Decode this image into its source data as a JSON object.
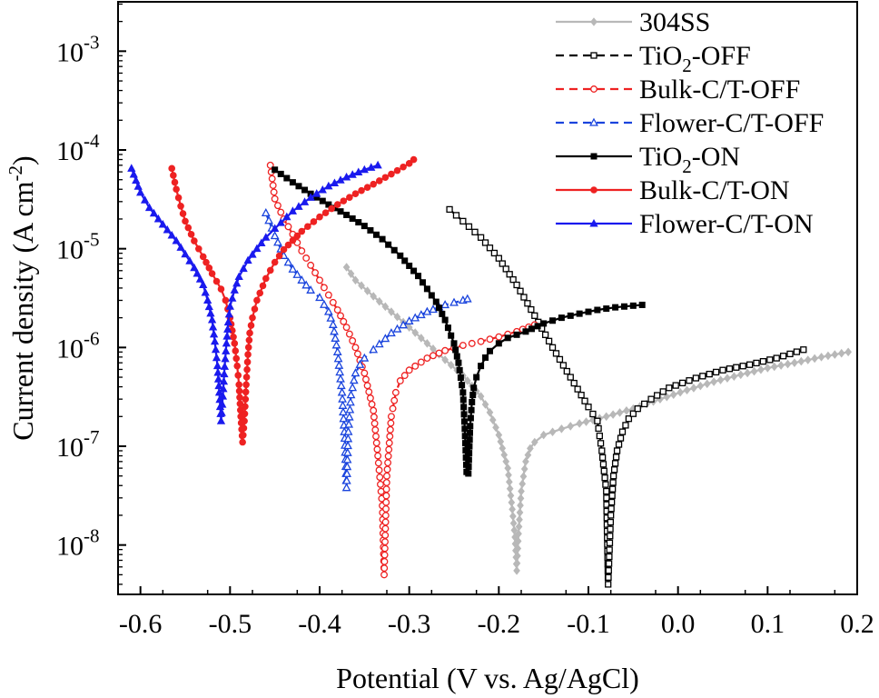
{
  "chart_data": {
    "type": "line",
    "title": "",
    "xlabel": "Potential (V vs. Ag/AgCl)",
    "ylabel": {
      "pre": "Current density (A cm",
      "sup": "-2",
      "post": ")"
    },
    "xlim": [
      -0.625,
      0.2
    ],
    "ylim_log10": [
      -8.5,
      -2.5
    ],
    "y_scale": "log",
    "x_ticks": [
      {
        "value": -0.6,
        "label": "-0.6"
      },
      {
        "value": -0.5,
        "label": "-0.5"
      },
      {
        "value": -0.4,
        "label": "-0.4"
      },
      {
        "value": -0.3,
        "label": "-0.3"
      },
      {
        "value": -0.2,
        "label": "-0.2"
      },
      {
        "value": -0.1,
        "label": "-0.1"
      },
      {
        "value": 0.0,
        "label": "0.0"
      },
      {
        "value": 0.1,
        "label": "0.1"
      },
      {
        "value": 0.2,
        "label": "0.2"
      }
    ],
    "y_ticks": [
      {
        "exp": -8,
        "base": "10",
        "sup": "-8"
      },
      {
        "exp": -7,
        "base": "10",
        "sup": "-7"
      },
      {
        "exp": -6,
        "base": "10",
        "sup": "-6"
      },
      {
        "exp": -5,
        "base": "10",
        "sup": "-5"
      },
      {
        "exp": -4,
        "base": "10",
        "sup": "-4"
      },
      {
        "exp": -3,
        "base": "10",
        "sup": "-3"
      }
    ],
    "legend_position": "top-right",
    "series": [
      {
        "name": "304SS",
        "legend": {
          "text": "304SS"
        },
        "color": "#b8b8b8",
        "dash": "solid",
        "marker": "diamond-filled",
        "x": [
          -0.37,
          -0.36,
          -0.34,
          -0.32,
          -0.3,
          -0.28,
          -0.26,
          -0.24,
          -0.22,
          -0.21,
          -0.2,
          -0.19,
          -0.185,
          -0.182,
          -0.18,
          -0.178,
          -0.175,
          -0.17,
          -0.165,
          -0.16,
          -0.15,
          -0.13,
          -0.11,
          -0.08,
          -0.05,
          -0.02,
          0.01,
          0.04,
          0.07,
          0.1,
          0.13,
          0.16,
          0.19
        ],
        "y": [
          6.5e-06,
          4.8e-06,
          3.3e-06,
          2.3e-06,
          1.6e-06,
          1.1e-06,
          7.5e-07,
          5.2e-07,
          3.2e-07,
          2.2e-07,
          1.3e-07,
          6e-08,
          2.3e-08,
          1.2e-08,
          5.5e-09,
          1.3e-08,
          3.5e-08,
          7e-08,
          9.5e-08,
          1.1e-07,
          1.3e-07,
          1.5e-07,
          1.7e-07,
          2e-07,
          2.4e-07,
          3e-07,
          3.7e-07,
          4.5e-07,
          5.3e-07,
          6.2e-07,
          7e-07,
          8e-07,
          9e-07
        ]
      },
      {
        "name": "TiO2-OFF",
        "legend": {
          "pre": "TiO",
          "sub": "2",
          "post": "-OFF"
        },
        "color": "#000000",
        "dash": "dashed",
        "marker": "square-open",
        "x": [
          -0.255,
          -0.24,
          -0.22,
          -0.2,
          -0.18,
          -0.16,
          -0.14,
          -0.12,
          -0.1,
          -0.09,
          -0.085,
          -0.08,
          -0.078,
          -0.075,
          -0.072,
          -0.068,
          -0.062,
          -0.055,
          -0.045,
          -0.03,
          -0.01,
          0.02,
          0.05,
          0.08,
          0.11,
          0.14
        ],
        "y": [
          2.5e-05,
          1.9e-05,
          1.3e-05,
          8e-06,
          4.3e-06,
          2.1e-06,
          1e-06,
          5e-07,
          2.5e-07,
          1.8e-07,
          9e-08,
          3.5e-08,
          4e-09,
          2e-08,
          5e-08,
          9e-08,
          1.4e-07,
          1.9e-07,
          2.4e-07,
          3e-07,
          3.9e-07,
          4.9e-07,
          5.9e-07,
          6.7e-07,
          7.8e-07,
          9.5e-07
        ]
      },
      {
        "name": "Bulk-C/T-OFF",
        "legend": {
          "text": "Bulk-C/T-OFF"
        },
        "color": "#ee2222",
        "dash": "dashed",
        "marker": "circle-open",
        "x": [
          -0.455,
          -0.45,
          -0.44,
          -0.43,
          -0.42,
          -0.41,
          -0.4,
          -0.39,
          -0.38,
          -0.37,
          -0.36,
          -0.35,
          -0.34,
          -0.335,
          -0.33,
          -0.328,
          -0.325,
          -0.32,
          -0.315,
          -0.31,
          -0.3,
          -0.28,
          -0.26,
          -0.24,
          -0.22,
          -0.2,
          -0.18,
          -0.16
        ],
        "y": [
          7e-05,
          3.2e-05,
          2e-05,
          1.4e-05,
          9.5e-06,
          6.8e-06,
          4.8e-06,
          3.4e-06,
          2.4e-06,
          1.6e-06,
          1e-06,
          5.5e-07,
          2.3e-07,
          8e-08,
          2.5e-08,
          5e-09,
          5e-08,
          2e-07,
          3.5e-07,
          4.6e-07,
          5.9e-07,
          7.8e-07,
          9.3e-07,
          1.05e-06,
          1.15e-06,
          1.28e-06,
          1.45e-06,
          1.7e-06
        ]
      },
      {
        "name": "Flower-C/T-OFF",
        "legend": {
          "text": "Flower-C/T-OFF"
        },
        "color": "#1a44dd",
        "dash": "dashed",
        "marker": "triangle-open",
        "x": [
          -0.46,
          -0.45,
          -0.44,
          -0.43,
          -0.42,
          -0.41,
          -0.4,
          -0.39,
          -0.385,
          -0.38,
          -0.375,
          -0.372,
          -0.37,
          -0.368,
          -0.365,
          -0.36,
          -0.355,
          -0.35,
          -0.34,
          -0.32,
          -0.3,
          -0.28,
          -0.26,
          -0.24,
          -0.235
        ],
        "y": [
          2.3e-05,
          1.35e-05,
          8.5e-06,
          6.2e-06,
          4.8e-06,
          3.8e-06,
          3.2e-06,
          2.3e-06,
          1.7e-06,
          9e-07,
          3.5e-07,
          1.2e-07,
          3.8e-08,
          1.4e-07,
          3.3e-07,
          5.5e-07,
          6.7e-07,
          7.8e-07,
          9.5e-07,
          1.4e-06,
          1.85e-06,
          2.3e-06,
          2.7e-06,
          3e-06,
          3.1e-06
        ]
      },
      {
        "name": "TiO2-ON",
        "legend": {
          "pre": "TiO",
          "sub": "2",
          "post": "-ON"
        },
        "color": "#000000",
        "dash": "solid",
        "marker": "square-filled",
        "x": [
          -0.45,
          -0.43,
          -0.41,
          -0.39,
          -0.37,
          -0.35,
          -0.33,
          -0.31,
          -0.29,
          -0.27,
          -0.26,
          -0.25,
          -0.245,
          -0.24,
          -0.238,
          -0.236,
          -0.234,
          -0.232,
          -0.23,
          -0.228,
          -0.225,
          -0.22,
          -0.215,
          -0.21,
          -0.2,
          -0.19,
          -0.17,
          -0.15,
          -0.13,
          -0.11,
          -0.09,
          -0.07,
          -0.05,
          -0.04
        ],
        "y": [
          6.3e-05,
          4.7e-05,
          3.6e-05,
          2.8e-05,
          2.2e-05,
          1.7e-05,
          1.25e-05,
          8.5e-06,
          5.3e-06,
          2.9e-06,
          1.9e-06,
          1.1e-06,
          7e-07,
          3.5e-07,
          1.5e-07,
          5.5e-08,
          5.3e-08,
          1.6e-07,
          2.8e-07,
          3.9e-07,
          5e-07,
          6.5e-07,
          7.9e-07,
          9.2e-07,
          1.1e-06,
          1.25e-06,
          1.45e-06,
          1.75e-06,
          2e-06,
          2.2e-06,
          2.4e-06,
          2.55e-06,
          2.65e-06,
          2.7e-06
        ]
      },
      {
        "name": "Bulk-C/T-ON",
        "legend": {
          "text": "Bulk-C/T-ON"
        },
        "color": "#ee2222",
        "dash": "solid",
        "marker": "circle-filled",
        "x": [
          -0.565,
          -0.56,
          -0.555,
          -0.55,
          -0.54,
          -0.53,
          -0.52,
          -0.51,
          -0.505,
          -0.5,
          -0.495,
          -0.492,
          -0.49,
          -0.488,
          -0.486,
          -0.484,
          -0.482,
          -0.48,
          -0.478,
          -0.475,
          -0.47,
          -0.46,
          -0.45,
          -0.44,
          -0.42,
          -0.4,
          -0.38,
          -0.36,
          -0.34,
          -0.32,
          -0.3,
          -0.295
        ],
        "y": [
          6.5e-05,
          4e-05,
          2.7e-05,
          1.9e-05,
          1.2e-05,
          8.3e-06,
          5.6e-06,
          3.9e-06,
          3e-06,
          2e-06,
          1.1e-06,
          6.5e-07,
          4.2e-07,
          2e-07,
          1.1e-07,
          1.8e-07,
          4.2e-07,
          8.5e-07,
          1.4e-06,
          2e-06,
          3e-06,
          5e-06,
          7.3e-06,
          9.8e-06,
          1.5e-05,
          2.1e-05,
          2.8e-05,
          3.6e-05,
          4.5e-05,
          5.7e-05,
          7.3e-05,
          8e-05
        ]
      },
      {
        "name": "Flower-C/T-ON",
        "legend": {
          "text": "Flower-C/T-ON"
        },
        "color": "#1a1aee",
        "dash": "solid",
        "marker": "triangle-filled",
        "x": [
          -0.61,
          -0.6,
          -0.59,
          -0.58,
          -0.57,
          -0.56,
          -0.55,
          -0.54,
          -0.53,
          -0.525,
          -0.52,
          -0.517,
          -0.514,
          -0.512,
          -0.51,
          -0.508,
          -0.506,
          -0.504,
          -0.502,
          -0.5,
          -0.495,
          -0.49,
          -0.48,
          -0.47,
          -0.46,
          -0.45,
          -0.43,
          -0.41,
          -0.39,
          -0.37,
          -0.35,
          -0.335
        ],
        "y": [
          6.5e-05,
          3.7e-05,
          2.6e-05,
          2e-05,
          1.55e-05,
          1.2e-05,
          8.8e-06,
          6.4e-06,
          4.3e-06,
          3e-06,
          1.9e-06,
          1.15e-06,
          6.5e-07,
          3.5e-07,
          1.8e-07,
          3.2e-07,
          6.4e-07,
          1.1e-06,
          1.8e-06,
          2.6e-06,
          3.8e-06,
          5.2e-06,
          7.6e-06,
          1e-05,
          1.3e-05,
          1.6e-05,
          2.4e-05,
          3.3e-05,
          4.3e-05,
          5.3e-05,
          6.3e-05,
          7e-05
        ]
      }
    ]
  }
}
